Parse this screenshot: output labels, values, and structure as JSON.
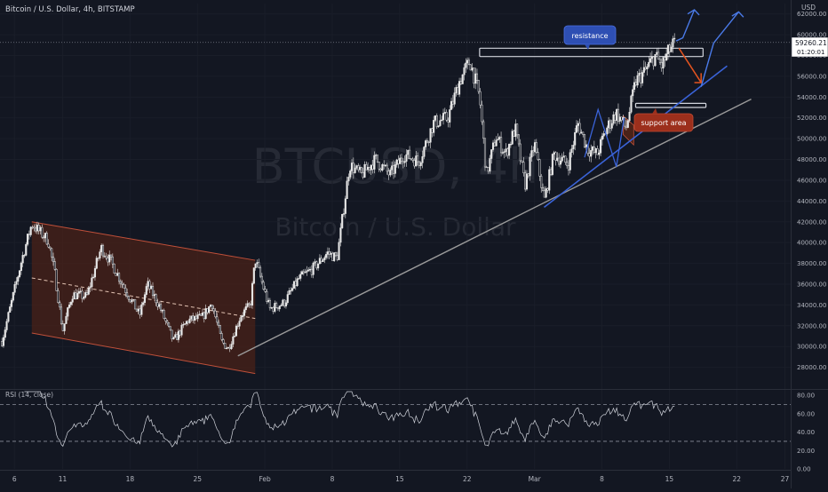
{
  "header": {
    "title": "Bitcoin / U.S. Dollar, 4h, BITSTAMP",
    "currency": "USD"
  },
  "watermark": {
    "symbol": "BTCUSD, 4h",
    "name": "Bitcoin / U.S. Dollar"
  },
  "price_badge": {
    "price": "59260.21",
    "countdown": "01:20:01"
  },
  "annotations": {
    "resistance": "resistance",
    "support": "support area"
  },
  "rsi": {
    "label": "RSI (14, close)"
  },
  "colors": {
    "background": "#131722",
    "candle": "#e8e8e8",
    "channel_fill": "#4a2218",
    "channel_line": "#c0503a",
    "blue": "#3a63d8",
    "gray_line": "#9a9a9a",
    "resistance_badge": "#2e4fb3",
    "support_badge": "#9c2f1c",
    "orange_arrow": "#e5541f"
  },
  "chart_data": [
    {
      "type": "candlestick",
      "title": "Bitcoin / U.S. Dollar, 4h, BITSTAMP",
      "ylabel": "USD",
      "ylim": [
        26000,
        63000
      ],
      "yticks": [
        28000,
        30000,
        32000,
        34000,
        36000,
        38000,
        40000,
        42000,
        44000,
        46000,
        48000,
        50000,
        52000,
        54000,
        56000,
        58000,
        60000,
        62000
      ],
      "x_ticks": [
        "6",
        "11",
        "18",
        "25",
        "Feb",
        "8",
        "15",
        "22",
        "Mar",
        "8",
        "15",
        "22",
        "27"
      ],
      "x_tick_days": [
        -26,
        -21,
        -14,
        -7,
        0,
        7,
        14,
        21,
        28,
        35,
        42,
        49,
        54
      ],
      "xlim_days": [
        -27.5,
        54.6
      ],
      "price_path": [
        [
          -27.3,
          30500
        ],
        [
          -26.5,
          33500
        ],
        [
          -25.2,
          38500
        ],
        [
          -24.2,
          41800
        ],
        [
          -22.5,
          40200
        ],
        [
          -21.8,
          37000
        ],
        [
          -21.0,
          31500
        ],
        [
          -20.0,
          35000
        ],
        [
          -18.5,
          34800
        ],
        [
          -17.0,
          39500
        ],
        [
          -16.0,
          38200
        ],
        [
          -14.5,
          35500
        ],
        [
          -13.0,
          33000
        ],
        [
          -12.2,
          36000
        ],
        [
          -11.0,
          34000
        ],
        [
          -9.5,
          30500
        ],
        [
          -8.0,
          32500
        ],
        [
          -6.5,
          32800
        ],
        [
          -5.5,
          34200
        ],
        [
          -4.5,
          30500
        ],
        [
          -3.8,
          29800
        ],
        [
          -2.5,
          33000
        ],
        [
          -1.5,
          34000
        ],
        [
          -1.0,
          38400
        ],
        [
          0.5,
          33600
        ],
        [
          2.0,
          34200
        ],
        [
          3.5,
          36500
        ],
        [
          5.0,
          37500
        ],
        [
          6.5,
          39000
        ],
        [
          7.5,
          38500
        ],
        [
          8.8,
          47500
        ],
        [
          10.0,
          46500
        ],
        [
          11.5,
          48000
        ],
        [
          13.0,
          46500
        ],
        [
          14.5,
          48500
        ],
        [
          16.0,
          47800
        ],
        [
          17.5,
          51500
        ],
        [
          19.0,
          52000
        ],
        [
          20.2,
          55500
        ],
        [
          21.3,
          57500
        ],
        [
          22.3,
          54000
        ],
        [
          23.0,
          46500
        ],
        [
          24.0,
          50200
        ],
        [
          25.0,
          48500
        ],
        [
          26.0,
          51000
        ],
        [
          27.0,
          45500
        ],
        [
          28.0,
          49500
        ],
        [
          29.0,
          44000
        ],
        [
          30.0,
          48500
        ],
        [
          31.5,
          47500
        ],
        [
          32.5,
          51500
        ],
        [
          33.5,
          49000
        ],
        [
          34.5,
          48500
        ],
        [
          35.5,
          51000
        ],
        [
          36.5,
          52500
        ],
        [
          37.5,
          51000
        ],
        [
          38.5,
          55500
        ],
        [
          39.5,
          56500
        ],
        [
          40.5,
          58000
        ],
        [
          41.2,
          57000
        ],
        [
          42.0,
          58500
        ],
        [
          42.6,
          59260
        ]
      ],
      "resistance_zone": [
        57900,
        58700
      ],
      "support_zone": [
        53000,
        53400
      ],
      "upper_channel": {
        "start": [
          -24.2,
          42000
        ],
        "end": [
          -1.0,
          38300
        ]
      },
      "lower_channel": {
        "start": [
          -24.2,
          31300
        ],
        "end": [
          -1.0,
          27400
        ]
      },
      "channel_mid": {
        "start": [
          -24.2,
          36600
        ],
        "end": [
          -1.0,
          32700
        ]
      },
      "gray_trendline": {
        "start": [
          -2.8,
          29100
        ],
        "end": [
          50.5,
          53800
        ]
      },
      "blue_trendline": {
        "start": [
          29.0,
          43400
        ],
        "end": [
          48.0,
          57000
        ]
      },
      "last_price": 59260.21
    },
    {
      "type": "line",
      "title": "RSI (14, close)",
      "ylim": [
        0,
        85
      ],
      "yticks": [
        0,
        20,
        40,
        60,
        80
      ],
      "band": [
        30,
        70
      ]
    }
  ]
}
